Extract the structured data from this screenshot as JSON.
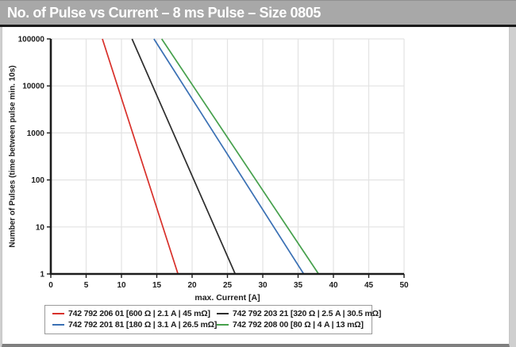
{
  "title_bar": {
    "title": "No. of Pulse vs Current – 8 ms Pulse – Size 0805"
  },
  "chart_data": {
    "type": "line",
    "title": "No. of Pulse vs Current – 8 ms Pulse – Size 0805",
    "xlabel": "max. Current [A]",
    "ylabel": "Number of Pulses  (time between pulse min. 10s)",
    "x_scale": "linear",
    "y_scale": "log",
    "xlim": [
      0,
      50
    ],
    "ylim": [
      1,
      100000
    ],
    "x_ticks": [
      0,
      5,
      10,
      15,
      20,
      25,
      30,
      35,
      40,
      45,
      50
    ],
    "y_ticks": [
      1,
      10,
      100,
      1000,
      10000,
      100000
    ],
    "grid": true,
    "legend_position": "bottom",
    "series": [
      {
        "name": "742 792 206 01 [600 Ω | 2.1 A | 45 mΩ]",
        "color": "#d8302a",
        "points": [
          [
            7.3,
            100000
          ],
          [
            18.0,
            1
          ]
        ]
      },
      {
        "name": "742 792 203 21 [320 Ω | 2.5 A | 30.5 mΩ]",
        "color": "#2d2d2d",
        "points": [
          [
            11.5,
            100000
          ],
          [
            26.1,
            1
          ]
        ]
      },
      {
        "name": "742 792 201 81 [180 Ω | 3.1 A | 26.5 mΩ]",
        "color": "#3a70b4",
        "points": [
          [
            14.6,
            100000
          ],
          [
            35.8,
            1
          ]
        ]
      },
      {
        "name": "742 792 208 00 [80 Ω | 4 A | 13 mΩ]",
        "color": "#46a04c",
        "points": [
          [
            15.7,
            100000
          ],
          [
            37.9,
            1
          ]
        ]
      }
    ]
  },
  "colors": {
    "title_bar_bg": "#a8a8a8",
    "title_text": "#ffffff",
    "panel_bg": "#ffffff",
    "axis": "#1c1c1c",
    "grid": "#e3e3e3",
    "text": "#1d1d1d",
    "legend_border": "#9a9a9a"
  }
}
